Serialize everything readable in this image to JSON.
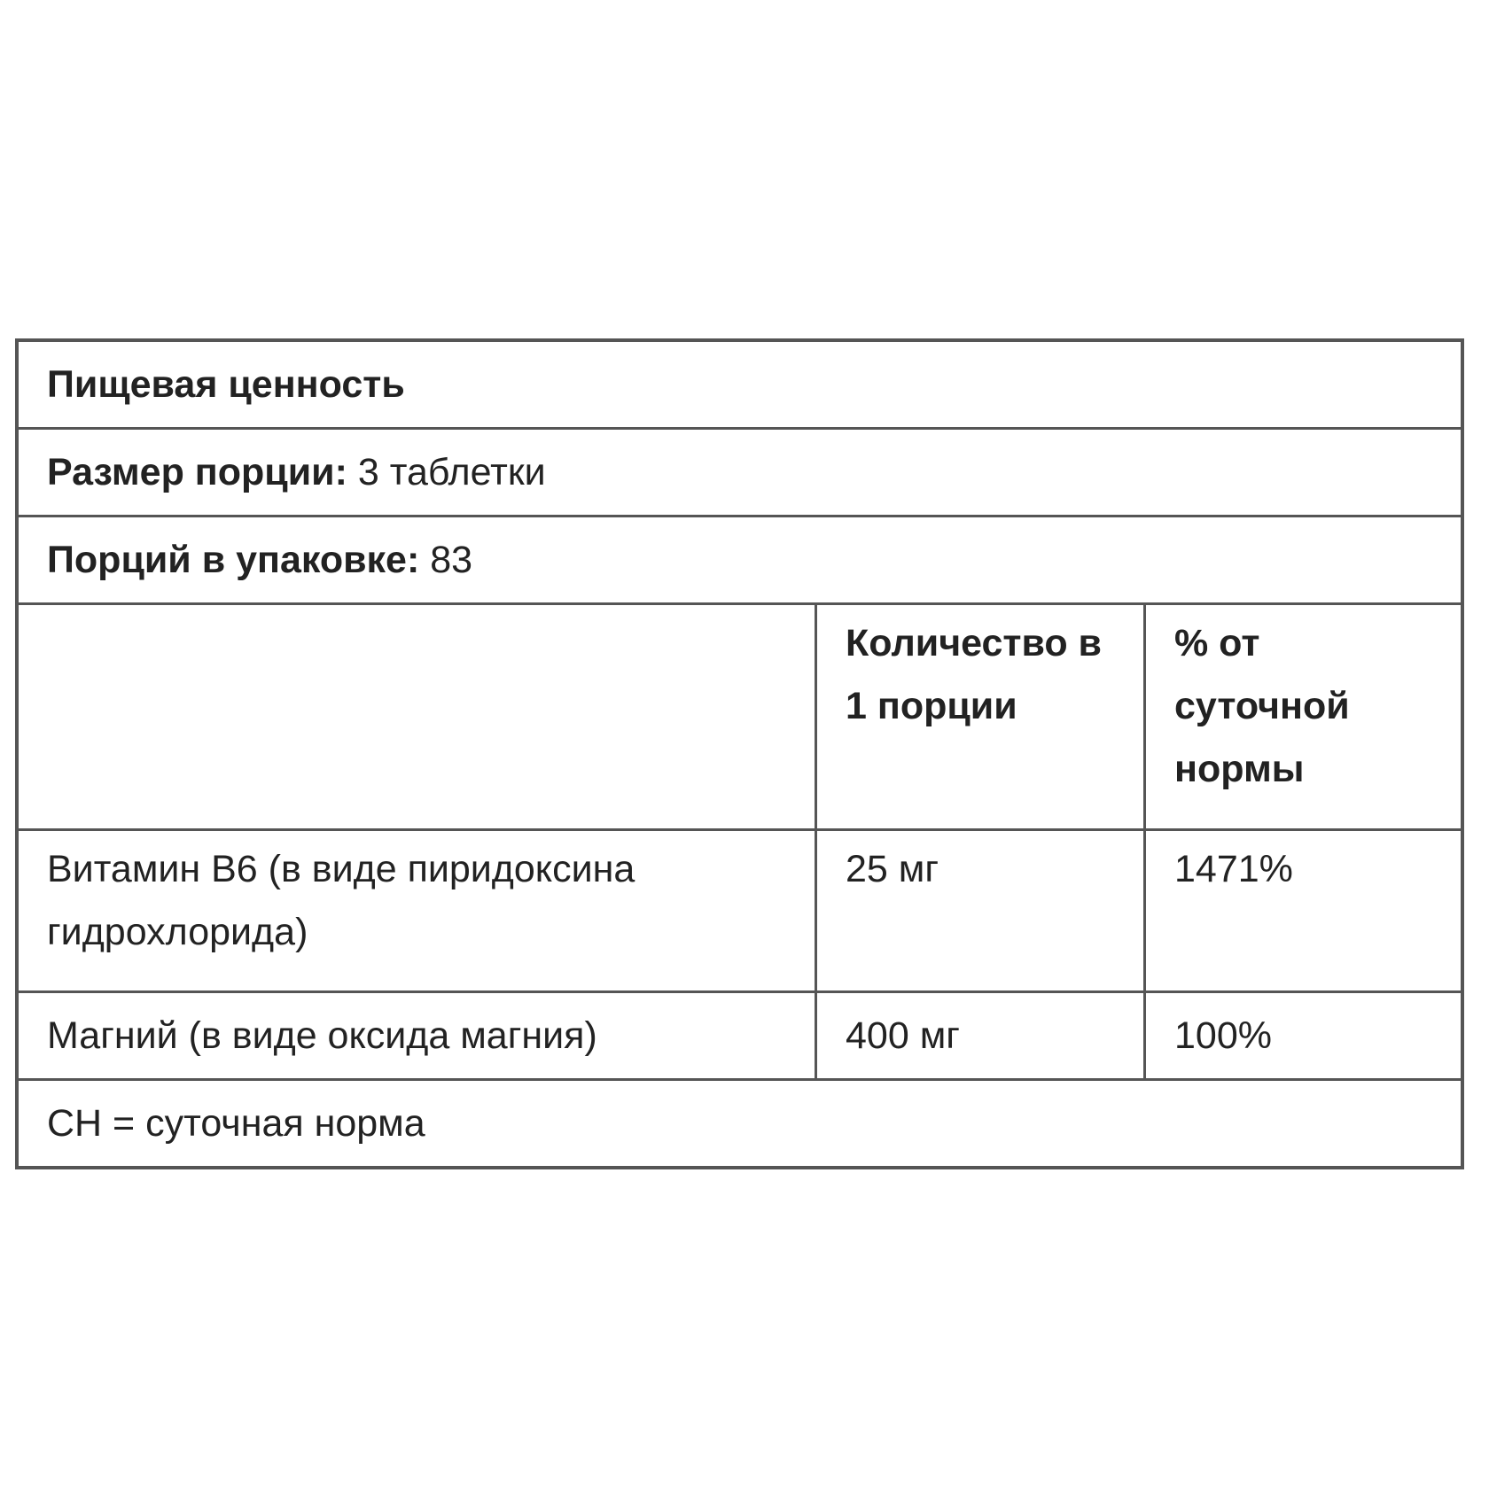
{
  "title": "Пищевая ценность",
  "serving_size": {
    "label": "Размер порции:",
    "value": "3 таблетки"
  },
  "servings_per_container": {
    "label": "Порций в упаковке:",
    "value": "83"
  },
  "columns": [
    "",
    "Количество в 1 порции",
    "% от суточной нормы"
  ],
  "rows": [
    {
      "name": "Витамин B6 (в виде пиридоксина гидрохлорида)",
      "amount": "25 мг",
      "dv": "1471%"
    },
    {
      "name": "Магний (в виде оксида магния)",
      "amount": "400 мг",
      "dv": "100%"
    }
  ],
  "footnote": "СН = суточная норма"
}
